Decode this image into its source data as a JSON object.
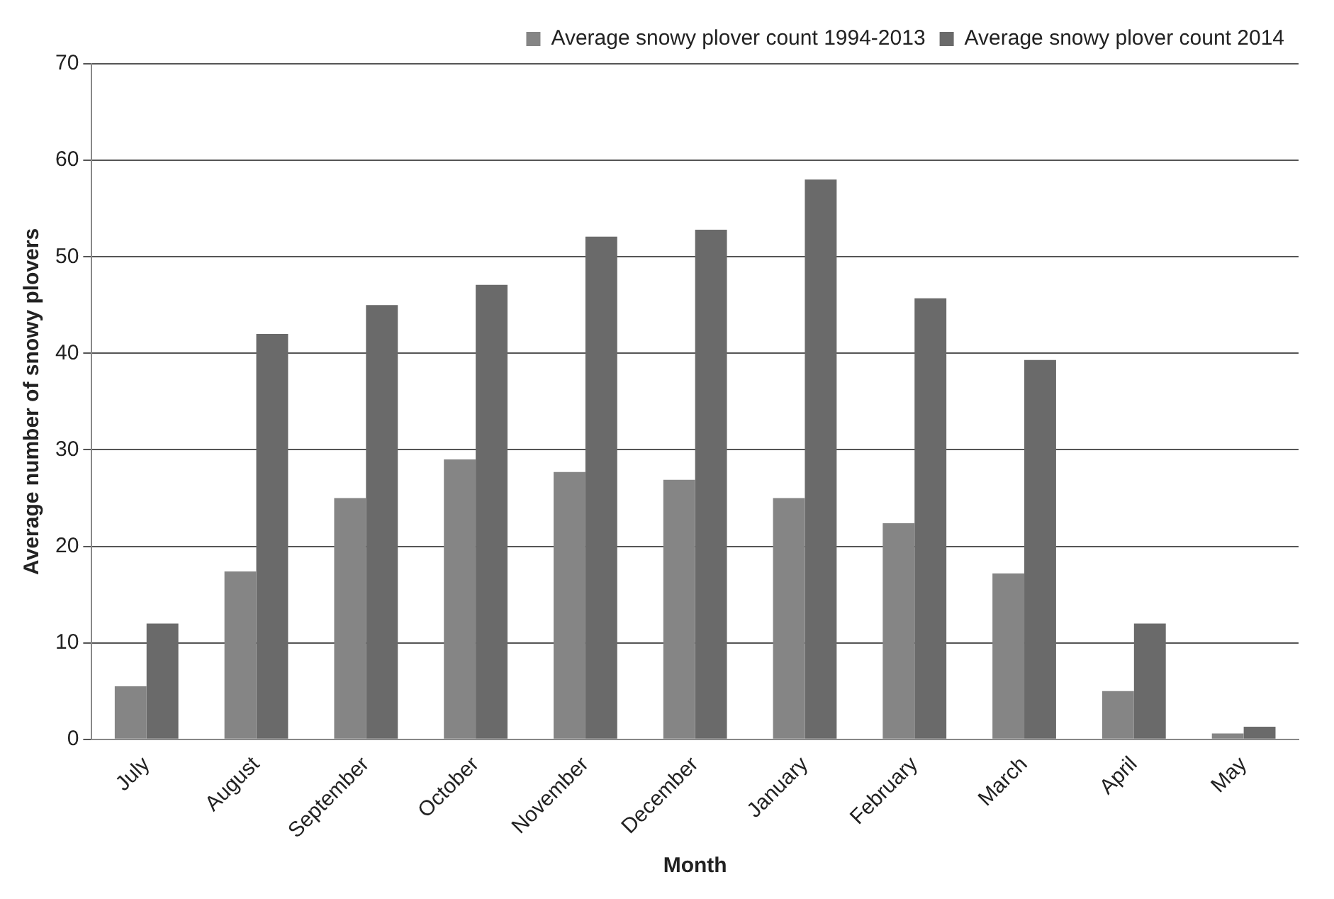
{
  "chart_data": {
    "type": "bar",
    "xlabel": "Month",
    "ylabel": "Average number of snowy plovers",
    "categories": [
      "July",
      "August",
      "September",
      "October",
      "November",
      "December",
      "January",
      "February",
      "March",
      "April",
      "May"
    ],
    "series": [
      {
        "name": "Average snowy plover count 1994-2013",
        "color": "#858585",
        "values": [
          5.5,
          17.4,
          25,
          29,
          27.7,
          26.9,
          25,
          22.4,
          17.2,
          5,
          0.6
        ]
      },
      {
        "name": "Average snowy plover count 2014",
        "color": "#6a6a6a",
        "values": [
          12,
          42,
          45,
          47.1,
          52.1,
          52.8,
          58,
          45.7,
          39.3,
          12,
          1.3
        ]
      }
    ],
    "ylim": [
      0,
      70
    ],
    "yticks": [
      0,
      10,
      20,
      30,
      40,
      50,
      60,
      70
    ],
    "grid": "y",
    "legend": "top right"
  }
}
